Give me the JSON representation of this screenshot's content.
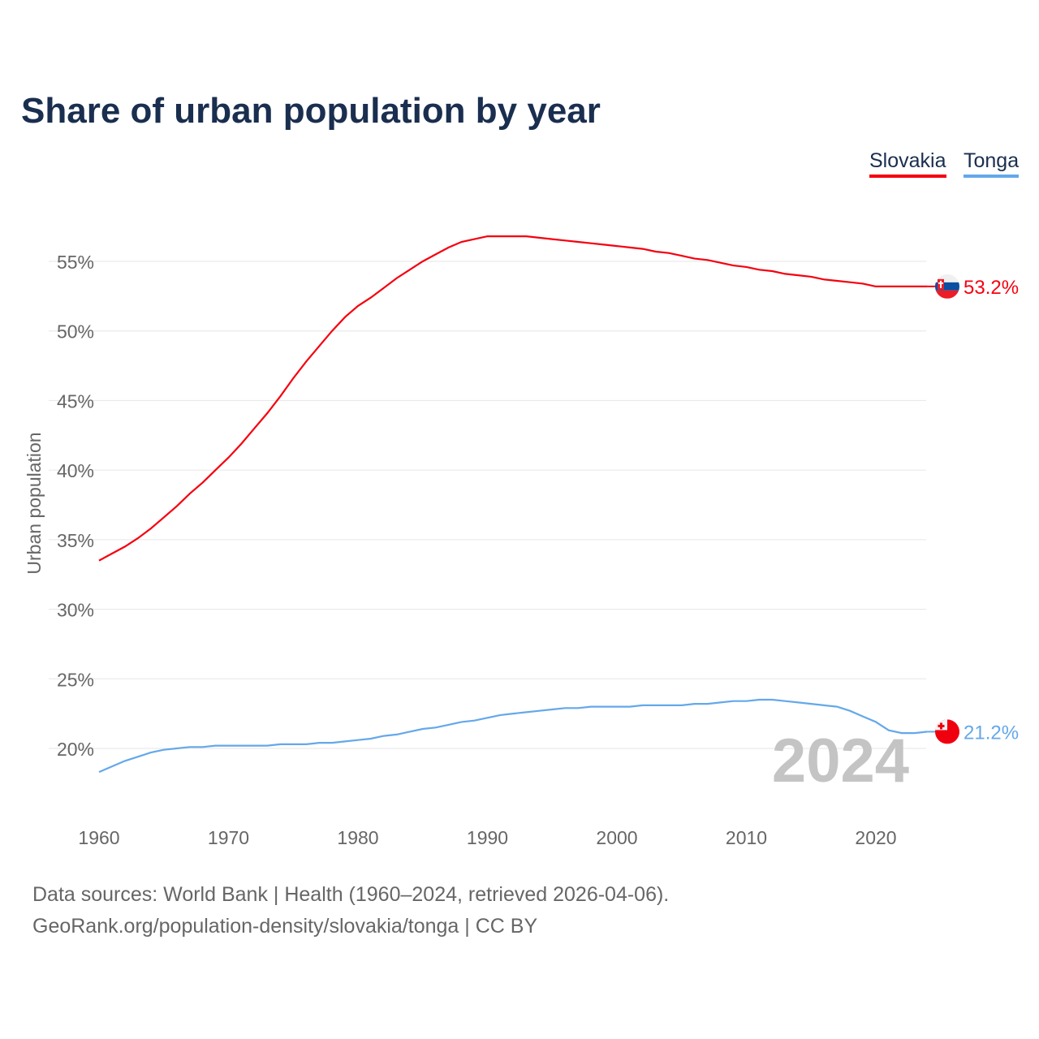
{
  "chart_data": {
    "type": "line",
    "title": "Share of urban population by year",
    "ylabel": "Urban population",
    "xlabel": "",
    "xlim": [
      1960,
      2024
    ],
    "ylim": [
      16.5,
      58
    ],
    "x_ticks": [
      1960,
      1970,
      1980,
      1990,
      2000,
      2010,
      2020
    ],
    "y_ticks": [
      20,
      25,
      30,
      35,
      40,
      45,
      50,
      55
    ],
    "y_tick_labels": [
      "20%",
      "25%",
      "30%",
      "35%",
      "40%",
      "45%",
      "50%",
      "55%"
    ],
    "grid": true,
    "legend_position": "top-right",
    "watermark_year": "2024",
    "x_start": 1960,
    "series": [
      {
        "name": "Slovakia",
        "color": "#f5000f",
        "end_label": "53.2%",
        "values": [
          33.5,
          34.0,
          34.5,
          35.1,
          35.8,
          36.6,
          37.4,
          38.3,
          39.1,
          40.0,
          40.9,
          41.9,
          43.0,
          44.1,
          45.3,
          46.6,
          47.8,
          48.9,
          50.0,
          51.0,
          51.8,
          52.4,
          53.1,
          53.8,
          54.4,
          55.0,
          55.5,
          56.0,
          56.4,
          56.6,
          56.8,
          56.8,
          56.8,
          56.8,
          56.7,
          56.6,
          56.5,
          56.4,
          56.3,
          56.2,
          56.1,
          56.0,
          55.9,
          55.7,
          55.6,
          55.4,
          55.2,
          55.1,
          54.9,
          54.7,
          54.6,
          54.4,
          54.3,
          54.1,
          54.0,
          53.9,
          53.7,
          53.6,
          53.5,
          53.4,
          53.2,
          53.2,
          53.2,
          53.2,
          53.2
        ]
      },
      {
        "name": "Tonga",
        "color": "#64a8ea",
        "end_label": "21.2%",
        "values": [
          18.3,
          18.7,
          19.1,
          19.4,
          19.7,
          19.9,
          20.0,
          20.1,
          20.1,
          20.2,
          20.2,
          20.2,
          20.2,
          20.2,
          20.3,
          20.3,
          20.3,
          20.4,
          20.4,
          20.5,
          20.6,
          20.7,
          20.9,
          21.0,
          21.2,
          21.4,
          21.5,
          21.7,
          21.9,
          22.0,
          22.2,
          22.4,
          22.5,
          22.6,
          22.7,
          22.8,
          22.9,
          22.9,
          23.0,
          23.0,
          23.0,
          23.0,
          23.1,
          23.1,
          23.1,
          23.1,
          23.2,
          23.2,
          23.3,
          23.4,
          23.4,
          23.5,
          23.5,
          23.4,
          23.3,
          23.2,
          23.1,
          23.0,
          22.7,
          22.3,
          21.9,
          21.3,
          21.1,
          21.1,
          21.2
        ]
      }
    ]
  },
  "footer": {
    "source": "Data sources: World Bank | Health (1960–2024, retrieved 2026-04-06).",
    "link": "GeoRank.org/population-density/slovakia/tonga | CC BY"
  }
}
